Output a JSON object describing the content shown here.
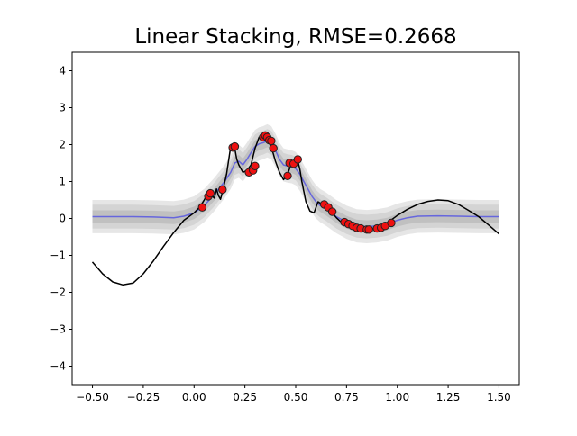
{
  "chart_data": {
    "type": "line",
    "title": "Linear Stacking, RMSE=0.2668",
    "xlabel": "",
    "ylabel": "",
    "xlim": [
      -0.6,
      1.6
    ],
    "ylim": [
      -4.5,
      4.5
    ],
    "xticks": [
      -0.5,
      -0.25,
      0.0,
      0.25,
      0.5,
      0.75,
      1.0,
      1.25,
      1.5
    ],
    "xtick_labels": [
      "−0.50",
      "−0.25",
      "0.00",
      "0.25",
      "0.50",
      "0.75",
      "1.00",
      "1.25",
      "1.50"
    ],
    "yticks": [
      -4,
      -3,
      -2,
      -1,
      0,
      1,
      2,
      3,
      4
    ],
    "ytick_labels": [
      "−4",
      "−3",
      "−2",
      "−1",
      "0",
      "1",
      "2",
      "3",
      "4"
    ],
    "grid": false,
    "colors": {
      "true_function": "#000000",
      "prediction_mean": "#6666dd",
      "band_outer": "#e6e6e6",
      "band_mid": "#d4d4d4",
      "band_inner": "#c0c0c0",
      "points_fill": "#ee1111",
      "points_edge": "#222222"
    },
    "band_half_widths": [
      0.45,
      0.32,
      0.17
    ],
    "true_function": {
      "x": [
        -0.5,
        -0.45,
        -0.4,
        -0.35,
        -0.3,
        -0.25,
        -0.2,
        -0.15,
        -0.1,
        -0.05,
        0.0,
        0.03,
        0.05,
        0.07,
        0.09,
        0.1,
        0.11,
        0.12,
        0.13,
        0.14,
        0.16,
        0.18,
        0.2,
        0.21,
        0.22,
        0.24,
        0.26,
        0.28,
        0.3,
        0.32,
        0.34,
        0.35,
        0.36,
        0.37,
        0.38,
        0.39,
        0.4,
        0.42,
        0.44,
        0.46,
        0.48,
        0.5,
        0.51,
        0.52,
        0.53,
        0.55,
        0.57,
        0.59,
        0.6,
        0.61,
        0.63,
        0.65,
        0.68,
        0.7,
        0.72,
        0.74,
        0.76,
        0.78,
        0.8,
        0.82,
        0.84,
        0.86,
        0.88,
        0.9,
        0.93,
        0.96,
        1.0,
        1.05,
        1.1,
        1.15,
        1.2,
        1.25,
        1.3,
        1.35,
        1.4,
        1.45,
        1.5
      ],
      "y": [
        -1.18,
        -1.5,
        -1.72,
        -1.8,
        -1.75,
        -1.5,
        -1.15,
        -0.75,
        -0.38,
        -0.05,
        0.15,
        0.32,
        0.5,
        0.7,
        0.6,
        0.55,
        0.8,
        0.62,
        0.52,
        0.72,
        1.2,
        1.95,
        1.9,
        1.6,
        1.45,
        1.25,
        1.3,
        1.45,
        1.9,
        2.2,
        2.25,
        2.2,
        2.15,
        2.05,
        1.9,
        1.75,
        1.55,
        1.25,
        1.05,
        1.2,
        1.5,
        1.6,
        1.55,
        1.35,
        1.0,
        0.45,
        0.2,
        0.15,
        0.3,
        0.45,
        0.38,
        0.3,
        0.15,
        0.02,
        -0.08,
        -0.15,
        -0.2,
        -0.25,
        -0.28,
        -0.3,
        -0.3,
        -0.29,
        -0.27,
        -0.25,
        -0.17,
        -0.08,
        0.08,
        0.25,
        0.38,
        0.46,
        0.5,
        0.48,
        0.38,
        0.22,
        0.05,
        -0.18,
        -0.42
      ]
    },
    "prediction_mean": {
      "x": [
        -0.5,
        -0.4,
        -0.3,
        -0.2,
        -0.1,
        -0.05,
        0.0,
        0.05,
        0.1,
        0.15,
        0.18,
        0.2,
        0.22,
        0.24,
        0.26,
        0.28,
        0.3,
        0.32,
        0.34,
        0.36,
        0.38,
        0.4,
        0.42,
        0.44,
        0.46,
        0.48,
        0.5,
        0.52,
        0.54,
        0.56,
        0.58,
        0.6,
        0.62,
        0.65,
        0.7,
        0.75,
        0.8,
        0.85,
        0.9,
        0.95,
        1.0,
        1.05,
        1.1,
        1.2,
        1.3,
        1.4,
        1.5
      ],
      "y": [
        0.05,
        0.05,
        0.05,
        0.04,
        0.02,
        0.06,
        0.15,
        0.35,
        0.65,
        1.0,
        1.25,
        1.5,
        1.55,
        1.45,
        1.6,
        1.78,
        1.95,
        2.02,
        2.05,
        2.1,
        2.05,
        1.85,
        1.6,
        1.45,
        1.42,
        1.4,
        1.35,
        1.2,
        1.0,
        0.8,
        0.6,
        0.45,
        0.35,
        0.25,
        0.05,
        -0.1,
        -0.2,
        -0.22,
        -0.2,
        -0.15,
        -0.05,
        0.02,
        0.06,
        0.07,
        0.06,
        0.05,
        0.05
      ]
    },
    "observations": {
      "x": [
        0.04,
        0.07,
        0.08,
        0.14,
        0.19,
        0.2,
        0.27,
        0.29,
        0.3,
        0.34,
        0.35,
        0.36,
        0.37,
        0.38,
        0.39,
        0.46,
        0.47,
        0.49,
        0.51,
        0.64,
        0.66,
        0.68,
        0.74,
        0.76,
        0.78,
        0.8,
        0.82,
        0.85,
        0.86,
        0.9,
        0.92,
        0.94,
        0.97
      ],
      "y": [
        0.3,
        0.6,
        0.68,
        0.78,
        1.92,
        1.95,
        1.25,
        1.3,
        1.42,
        2.2,
        2.25,
        2.2,
        2.12,
        2.1,
        1.9,
        1.15,
        1.5,
        1.48,
        1.6,
        0.38,
        0.3,
        0.18,
        -0.1,
        -0.15,
        -0.2,
        -0.25,
        -0.27,
        -0.3,
        -0.3,
        -0.27,
        -0.25,
        -0.2,
        -0.12
      ]
    }
  }
}
